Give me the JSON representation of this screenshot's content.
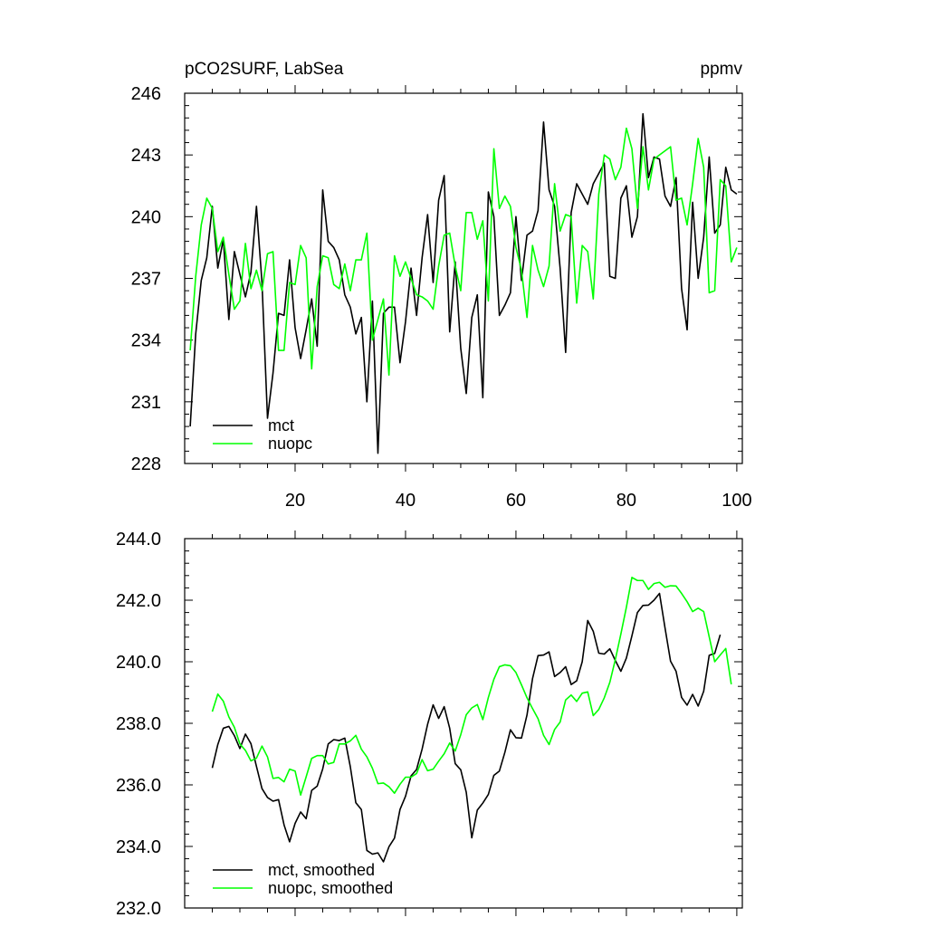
{
  "chart_data": [
    {
      "type": "line",
      "title_left": "pCO2SURF, LabSea",
      "title_right": "ppmv",
      "xlabel": "",
      "ylabel": "",
      "xlim": [
        0,
        101
      ],
      "ylim": [
        228,
        246
      ],
      "x_ticks": [
        20,
        40,
        60,
        80,
        100
      ],
      "x_tick_labels": [
        "20",
        "40",
        "60",
        "80",
        "100"
      ],
      "y_ticks": [
        228,
        231,
        234,
        237,
        240,
        243,
        246
      ],
      "y_tick_labels": [
        "228",
        "231",
        "234",
        "237",
        "240",
        "243",
        "246"
      ],
      "legend_position": "bottom-left",
      "x_start": 1,
      "series": [
        {
          "name": "mct",
          "color": "#000000",
          "values": [
            229.8,
            234.3,
            236.9,
            238.0,
            240.5,
            237.5,
            238.9,
            235.0,
            238.3,
            237.2,
            236.1,
            237.3,
            240.5,
            236.8,
            230.2,
            232.4,
            235.3,
            235.2,
            237.9,
            234.6,
            233.1,
            234.5,
            236.0,
            233.7,
            241.3,
            238.8,
            238.5,
            237.9,
            236.2,
            235.6,
            234.3,
            235.1,
            231.0,
            235.9,
            228.5,
            235.3,
            235.6,
            235.6,
            232.9,
            234.9,
            237.5,
            235.2,
            238.0,
            240.1,
            236.8,
            240.8,
            242.0,
            234.4,
            237.8,
            233.6,
            231.4,
            235.1,
            236.2,
            231.2,
            241.2,
            240.0,
            235.2,
            235.7,
            236.3,
            240.0,
            236.9,
            239.1,
            239.3,
            240.3,
            244.6,
            241.3,
            240.5,
            237.5,
            233.4,
            240.2,
            241.6,
            241.1,
            240.6,
            241.6,
            242.1,
            242.6,
            237.1,
            237.0,
            240.9,
            241.5,
            239.0,
            240.0,
            245.0,
            241.9,
            242.9,
            242.8,
            241.0,
            240.5,
            241.9,
            236.5,
            234.5,
            240.7,
            237.0,
            239.0,
            242.9,
            239.2,
            239.6,
            242.4,
            241.3,
            241.1
          ]
        },
        {
          "name": "nuopc",
          "color": "#00ff00",
          "values": [
            233.5,
            237.1,
            239.6,
            240.9,
            240.4,
            238.3,
            239.0,
            237.2,
            235.5,
            235.9,
            238.7,
            236.5,
            237.4,
            236.4,
            238.2,
            238.3,
            233.5,
            233.5,
            236.8,
            236.7,
            238.6,
            238.0,
            232.6,
            236.6,
            238.1,
            238.0,
            236.7,
            236.5,
            237.7,
            236.4,
            237.9,
            237.9,
            239.2,
            234.0,
            235.0,
            236.0,
            232.3,
            238.1,
            237.1,
            237.8,
            237.0,
            236.2,
            236.1,
            235.9,
            235.5,
            237.6,
            239.1,
            239.2,
            237.6,
            236.4,
            240.2,
            240.2,
            238.9,
            239.8,
            235.9,
            243.3,
            240.4,
            241.0,
            240.5,
            238.5,
            237.4,
            235.1,
            238.6,
            237.4,
            236.6,
            237.6,
            241.6,
            239.3,
            240.1,
            240.0,
            235.8,
            238.6,
            238.3,
            236.0,
            241.1,
            243.0,
            242.8,
            241.8,
            242.4,
            244.3,
            243.3,
            240.4,
            243.4,
            241.3,
            242.8,
            243.0,
            243.2,
            243.4,
            240.8,
            240.9,
            239.6,
            241.6,
            243.8,
            242.4,
            236.3,
            236.4,
            241.8,
            241.5,
            237.8,
            238.5
          ]
        }
      ]
    },
    {
      "type": "line",
      "title_left": "",
      "title_right": "",
      "xlabel": "",
      "ylabel": "",
      "xlim": [
        0,
        101
      ],
      "ylim": [
        232,
        244
      ],
      "x_ticks": [
        20,
        40,
        60,
        80,
        100
      ],
      "x_tick_labels": [],
      "y_ticks": [
        232,
        234,
        236,
        238,
        240,
        242,
        244
      ],
      "y_tick_labels": [
        "232.0",
        "234.0",
        "236.0",
        "238.0",
        "240.0",
        "242.0",
        "244.0"
      ],
      "legend_position": "bottom-left",
      "x_start": 5,
      "series": [
        {
          "name": "mct, smoothed",
          "color": "#000000",
          "values": [
            236.55,
            237.31,
            237.84,
            237.9,
            237.6,
            237.18,
            237.65,
            237.34,
            236.6,
            235.88,
            235.59,
            235.47,
            235.52,
            234.7,
            234.15,
            234.75,
            235.12,
            234.9,
            235.82,
            235.96,
            236.52,
            237.33,
            237.47,
            237.44,
            237.52,
            236.59,
            235.42,
            235.2,
            233.87,
            233.75,
            233.79,
            233.5,
            233.99,
            234.27,
            235.2,
            235.63,
            236.29,
            236.5,
            237.16,
            237.97,
            238.6,
            238.16,
            238.54,
            237.84,
            236.69,
            236.49,
            235.76,
            234.28,
            235.18,
            235.41,
            235.69,
            236.31,
            236.45,
            237.06,
            237.79,
            237.53,
            237.52,
            238.27,
            239.45,
            240.2,
            240.22,
            240.32,
            239.52,
            239.65,
            239.84,
            239.26,
            239.38,
            240.0,
            241.34,
            240.99,
            240.28,
            240.25,
            240.42,
            240.04,
            239.69,
            240.12,
            240.84,
            241.6,
            241.83,
            241.84,
            242.0,
            242.22,
            241.1,
            240.02,
            239.69,
            238.84,
            238.59,
            238.94,
            238.56,
            239.04,
            240.21,
            240.27,
            240.88
          ]
        },
        {
          "name": "nuopc, smoothed",
          "color": "#00ff00",
          "values": [
            238.38,
            238.95,
            238.72,
            238.21,
            237.87,
            237.33,
            237.12,
            236.78,
            236.87,
            237.26,
            236.91,
            236.21,
            236.24,
            236.1,
            236.51,
            236.45,
            235.67,
            236.26,
            236.86,
            236.95,
            236.95,
            236.68,
            236.73,
            237.33,
            237.33,
            237.43,
            237.61,
            237.16,
            236.91,
            236.54,
            236.04,
            236.06,
            235.94,
            235.73,
            236.02,
            236.25,
            236.25,
            236.37,
            236.82,
            236.46,
            236.51,
            236.77,
            237.01,
            237.36,
            237.1,
            237.63,
            238.28,
            238.5,
            238.61,
            238.12,
            238.84,
            239.43,
            239.84,
            239.9,
            239.87,
            239.65,
            239.25,
            238.83,
            238.48,
            238.15,
            237.61,
            237.31,
            237.8,
            238.04,
            238.76,
            238.92,
            238.71,
            238.98,
            239.02,
            238.25,
            238.45,
            238.83,
            239.33,
            240.07,
            240.9,
            241.77,
            242.74,
            242.64,
            242.64,
            242.35,
            242.54,
            242.58,
            242.42,
            242.47,
            242.46,
            242.22,
            241.95,
            241.63,
            241.74,
            241.63,
            240.81,
            240.0,
            240.22,
            240.43,
            239.27
          ]
        }
      ]
    }
  ]
}
